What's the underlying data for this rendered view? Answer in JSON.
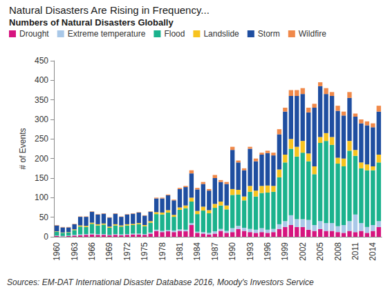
{
  "chart_data": {
    "type": "bar",
    "title": "Natural Disasters Are Rising in Frequency...",
    "subtitle": "Numbers of Natural Disasters Globally",
    "y_label": "# of Events",
    "annotations": [
      "Sources: EM-DAT International Disaster Database 2016, Moody's Investors Service"
    ],
    "categories": [
      "1960",
      null,
      null,
      "1963",
      null,
      null,
      "1966",
      null,
      null,
      "1969",
      null,
      null,
      "1972",
      null,
      null,
      "1975",
      null,
      null,
      "1978",
      null,
      null,
      "1981",
      null,
      null,
      "1984",
      null,
      null,
      "1987",
      null,
      null,
      "1990",
      null,
      null,
      "1993",
      null,
      null,
      "1996",
      null,
      null,
      "1999",
      null,
      null,
      "2002",
      null,
      null,
      "2005",
      null,
      null,
      "2008",
      null,
      null,
      "2011",
      null,
      null,
      "2014",
      null
    ],
    "series": [
      {
        "name": "Drought",
        "color": "#d6157f",
        "values": [
          2,
          1,
          2,
          3,
          4,
          5,
          6,
          5,
          5,
          4,
          5,
          4,
          5,
          6,
          6,
          5,
          8,
          15,
          12,
          14,
          12,
          15,
          14,
          30,
          10,
          8,
          6,
          8,
          15,
          10,
          12,
          20,
          15,
          12,
          10,
          12,
          10,
          12,
          20,
          25,
          30,
          25,
          25,
          18,
          15,
          20,
          15,
          15,
          12,
          10,
          15,
          12,
          15,
          10,
          15,
          25
        ]
      },
      {
        "name": "Extreme temperature",
        "color": "#a9c8e8",
        "values": [
          1,
          1,
          1,
          2,
          2,
          2,
          2,
          2,
          2,
          1,
          2,
          2,
          2,
          2,
          2,
          2,
          3,
          3,
          3,
          3,
          4,
          4,
          4,
          5,
          3,
          4,
          4,
          6,
          5,
          5,
          10,
          8,
          8,
          8,
          8,
          10,
          8,
          8,
          12,
          15,
          25,
          20,
          20,
          25,
          15,
          20,
          20,
          20,
          15,
          20,
          25,
          45,
          20,
          15,
          15,
          15
        ]
      },
      {
        "name": "Flood",
        "color": "#1bb28d",
        "values": [
          10,
          8,
          8,
          12,
          20,
          18,
          25,
          22,
          24,
          18,
          22,
          20,
          22,
          22,
          24,
          20,
          25,
          40,
          42,
          45,
          35,
          50,
          55,
          55,
          45,
          55,
          50,
          60,
          60,
          55,
          85,
          80,
          70,
          95,
          85,
          90,
          95,
          95,
          120,
          150,
          170,
          160,
          170,
          150,
          130,
          200,
          210,
          200,
          160,
          150,
          180,
          150,
          140,
          145,
          140,
          150
        ]
      },
      {
        "name": "Landslide",
        "color": "#f7c31f",
        "values": [
          1,
          1,
          1,
          2,
          3,
          3,
          3,
          3,
          3,
          3,
          3,
          3,
          3,
          3,
          3,
          3,
          4,
          5,
          5,
          6,
          5,
          6,
          7,
          10,
          8,
          10,
          8,
          10,
          10,
          10,
          15,
          12,
          10,
          15,
          15,
          18,
          18,
          15,
          20,
          20,
          25,
          25,
          30,
          20,
          20,
          15,
          20,
          20,
          15,
          20,
          25,
          15,
          15,
          15,
          10,
          20
        ]
      },
      {
        "name": "Storm",
        "color": "#1f4ea0",
        "values": [
          15,
          13,
          12,
          13,
          22,
          23,
          28,
          25,
          25,
          23,
          27,
          22,
          25,
          26,
          27,
          24,
          24,
          35,
          36,
          38,
          37,
          47,
          47,
          62,
          55,
          58,
          50,
          66,
          50,
          55,
          100,
          70,
          67,
          95,
          75,
          80,
          83,
          78,
          90,
          110,
          110,
          130,
          120,
          105,
          150,
          130,
          100,
          105,
          120,
          110,
          110,
          85,
          100,
          100,
          100,
          110
        ]
      },
      {
        "name": "Wildfire",
        "color": "#f0894a",
        "values": [
          1,
          1,
          1,
          1,
          1,
          1,
          1,
          1,
          1,
          1,
          1,
          1,
          1,
          1,
          1,
          1,
          1,
          2,
          2,
          2,
          2,
          3,
          3,
          8,
          4,
          5,
          4,
          8,
          5,
          5,
          8,
          5,
          5,
          5,
          7,
          5,
          6,
          7,
          13,
          10,
          15,
          15,
          15,
          12,
          10,
          10,
          15,
          10,
          13,
          10,
          15,
          8,
          10,
          10,
          10,
          15
        ]
      }
    ],
    "ylim": [
      0,
      450
    ],
    "yticks": [
      0,
      50,
      100,
      150,
      200,
      250,
      300,
      350,
      400,
      450
    ],
    "stacked": true,
    "grid": false,
    "legend": "top-left"
  }
}
